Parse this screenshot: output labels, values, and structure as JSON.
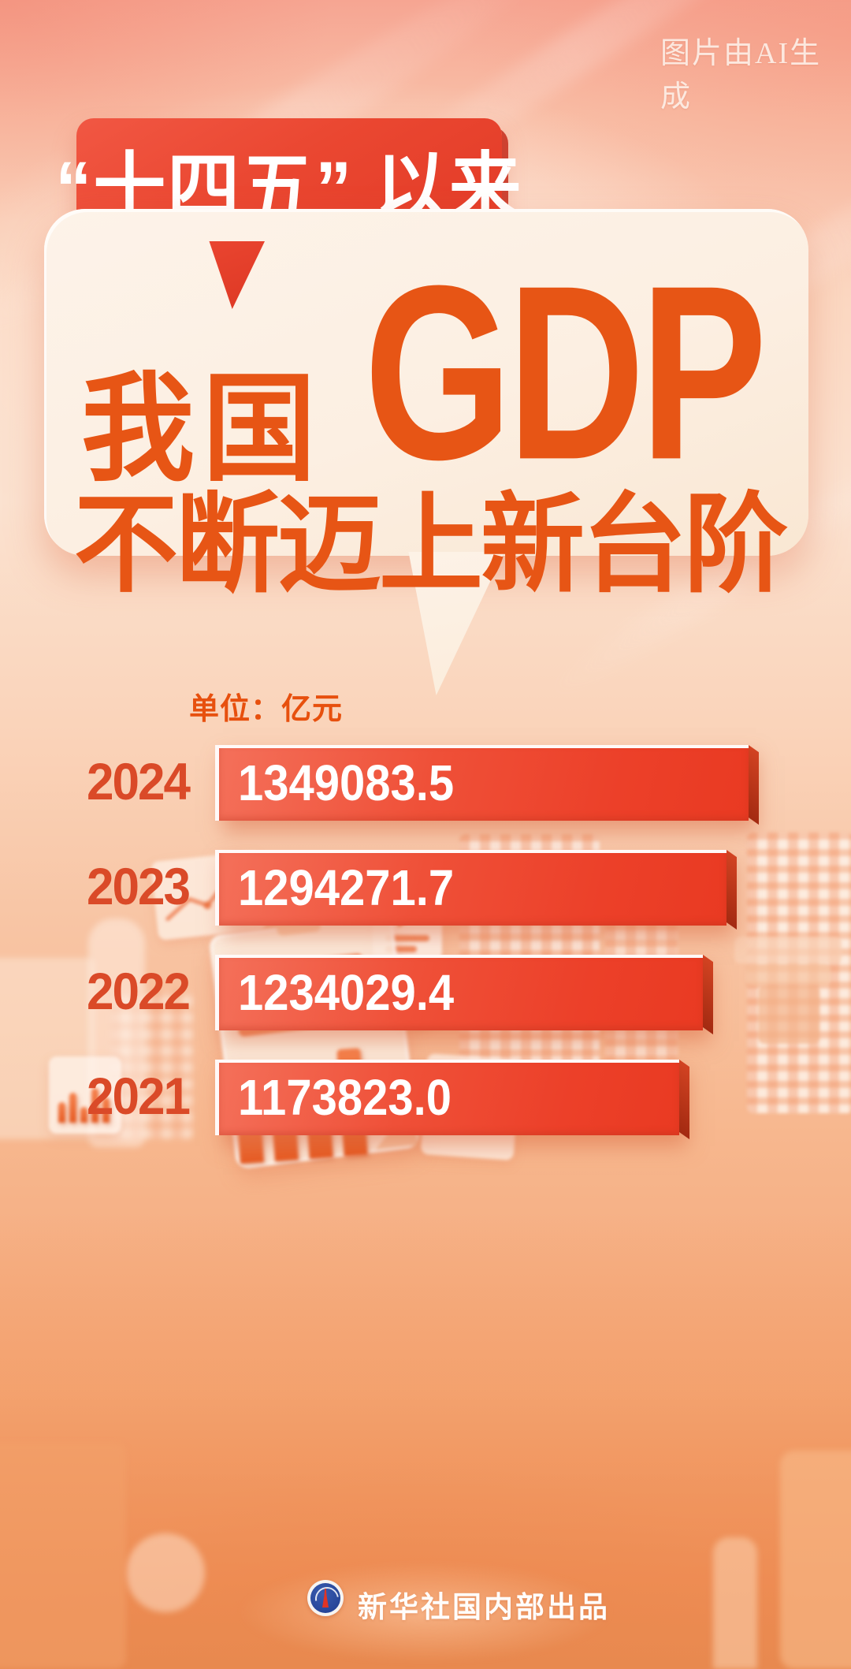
{
  "page": {
    "ai_note": "图片由AI生成"
  },
  "badge": {
    "label": "“十四五” 以来"
  },
  "title": {
    "prefix": "我国",
    "highlight": "GDP",
    "line2": "不断迈上新台阶"
  },
  "chart": {
    "unit_label": "单位：亿元"
  },
  "chart_data": {
    "type": "bar",
    "orientation": "horizontal",
    "title": "“十四五”以来我国GDP不断迈上新台阶",
    "unit": "亿元",
    "categories": [
      "2024",
      "2023",
      "2022",
      "2021"
    ],
    "values": [
      1349083.5,
      1294271.7,
      1234029.4,
      1173823.0
    ],
    "value_labels": [
      "1349083.5",
      "1294271.7",
      "1234029.4",
      "1173823.0"
    ],
    "bar_color": "#ee4a31",
    "category_label_color": "#da4a28",
    "value_text_color": "#ffffff",
    "axis": "none",
    "legend": "none",
    "note": "bar length proportional to value"
  },
  "footer": {
    "credit": "新华社国内部出品",
    "logo": "xinhua-agency-emblem"
  },
  "colors": {
    "badge_red": "#e8422c",
    "bubble_cream": "#fcefe2",
    "title_orange": "#e75515",
    "bar_red": "#ee4a31",
    "background_peach": "#f8c4a8",
    "ai_note_color": "#fdeee6"
  }
}
